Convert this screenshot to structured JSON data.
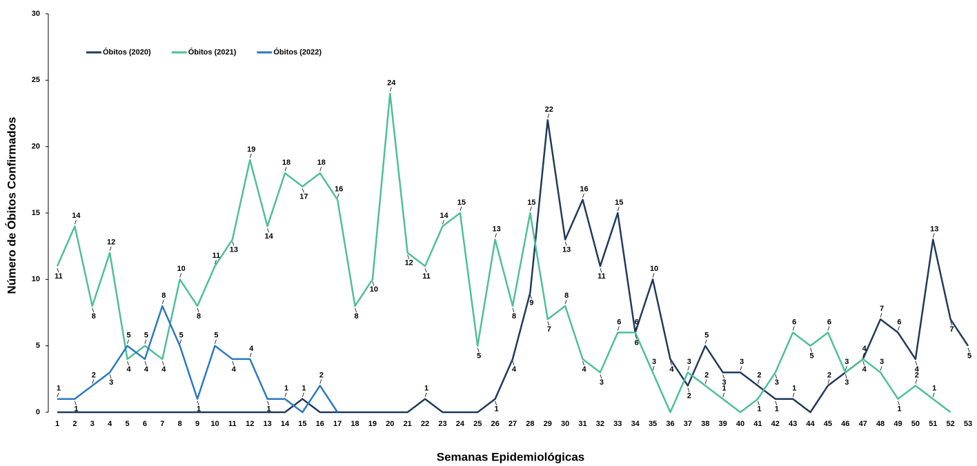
{
  "chart_data": {
    "type": "line",
    "x_label": "Semanas Epidemiológicas",
    "y_label": "Número de Óbitos Confirmados",
    "categories": [
      1,
      2,
      3,
      4,
      5,
      6,
      7,
      8,
      9,
      10,
      11,
      12,
      13,
      14,
      15,
      16,
      17,
      18,
      19,
      20,
      21,
      22,
      23,
      24,
      25,
      26,
      27,
      28,
      29,
      30,
      31,
      32,
      33,
      34,
      35,
      36,
      37,
      38,
      39,
      40,
      41,
      42,
      43,
      44,
      45,
      46,
      47,
      48,
      49,
      50,
      51,
      52,
      53
    ],
    "ylim": [
      0,
      30
    ],
    "yticks": [
      0,
      5,
      10,
      15,
      20,
      25,
      30
    ],
    "grid": false,
    "legend": "top-left",
    "series": [
      {
        "name": "Óbitos (2020)",
        "color": "#1f3a5c",
        "values": [
          0,
          0,
          0,
          0,
          0,
          0,
          0,
          0,
          0,
          0,
          0,
          0,
          0,
          0,
          1,
          0,
          0,
          0,
          0,
          0,
          0,
          1,
          0,
          0,
          0,
          1,
          4,
          9,
          22,
          13,
          16,
          11,
          15,
          6,
          10,
          4,
          2,
          5,
          3,
          3,
          2,
          1,
          1,
          0,
          2,
          3,
          4,
          7,
          6,
          4,
          13,
          7,
          5
        ]
      },
      {
        "name": "Óbitos (2021)",
        "color": "#4dbf99",
        "values": [
          11,
          14,
          8,
          12,
          4,
          5,
          4,
          10,
          8,
          11,
          13,
          19,
          14,
          18,
          17,
          18,
          16,
          8,
          10,
          24,
          12,
          11,
          14,
          15,
          5,
          13,
          8,
          15,
          7,
          8,
          4,
          3,
          6,
          6,
          3,
          0,
          3,
          2,
          1,
          0,
          1,
          3,
          6,
          5,
          6,
          3,
          4,
          3,
          1,
          2,
          1,
          0,
          null
        ]
      },
      {
        "name": "Óbitos (2022)",
        "color": "#2b78c2",
        "values": [
          1,
          1,
          2,
          3,
          5,
          4,
          8,
          5,
          1,
          5,
          4,
          4,
          1,
          1,
          0,
          2,
          0,
          null,
          null,
          null,
          null,
          null,
          null,
          null,
          null,
          null,
          null,
          null,
          null,
          null,
          null,
          null,
          null,
          null,
          null,
          null,
          null,
          null,
          null,
          null,
          null,
          null,
          null,
          null,
          null,
          null,
          null,
          null,
          null,
          null,
          null,
          null,
          null
        ]
      }
    ]
  }
}
